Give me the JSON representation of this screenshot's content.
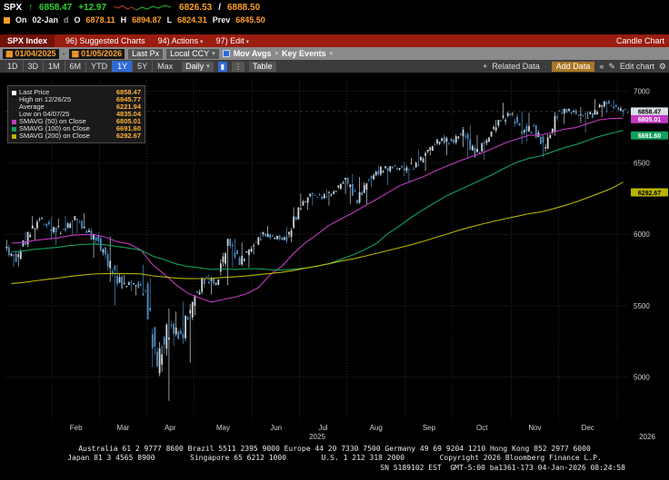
{
  "quote_row": {
    "ticker": "SPX",
    "arrow": "↑",
    "last": "6858.47",
    "change": "+12.97",
    "low": "6826.53",
    "sep": "/",
    "high": "6888.50"
  },
  "ohlc_row": {
    "on_label": "On",
    "date": "02-Jan",
    "d": "d",
    "o_label": "O",
    "open": "6878.11",
    "h_label": "H",
    "high": "6894.87",
    "l_label": "L",
    "low": "6824.31",
    "prev_label": "Prev",
    "prev": "6845.50"
  },
  "menubar": {
    "security": "SPX Index",
    "items": [
      "96) Suggested Charts",
      "94) Actions",
      "97) Edit"
    ],
    "right_label": "Candle Chart"
  },
  "toolbar": {
    "date_from": "01/04/2025",
    "date_separator": "-",
    "date_to": "01/05/2026",
    "price_type": "Last Px",
    "currency": "Local CCY",
    "mov_avgs_label": "Mov Avgs",
    "key_events_label": "Key Events"
  },
  "periods_bar": {
    "periods": [
      "1D",
      "3D",
      "1M",
      "6M",
      "YTD",
      "1Y",
      "5Y",
      "Max"
    ],
    "active": "1Y",
    "frequency": "Daily",
    "table_label": "Table",
    "related_label": "Related Data",
    "add_data_label": "Add Data",
    "edit_chart_label": "Edit chart"
  },
  "icons": {
    "caret": "▾",
    "calendar": "▦",
    "candle_chart": "▮",
    "dots": "⋮",
    "plus": "+",
    "pencil": "✎",
    "gear": "⚙",
    "chevrons": "«",
    "separator": "·"
  },
  "legend": {
    "rows": [
      {
        "marker": "#ffffff",
        "label": "Last Price",
        "value": "6858.47"
      },
      {
        "marker": "",
        "label": "High on 12/26/25",
        "value": "6945.77"
      },
      {
        "marker": "",
        "label": "Average",
        "value": "6221.94"
      },
      {
        "marker": "",
        "label": "Low on 04/07/25",
        "value": "4835.04"
      },
      {
        "marker": "#c13ac1",
        "label": "SMAVG (50) on Close",
        "value": "6805.01"
      },
      {
        "marker": "#11a05c",
        "label": "SMAVG (100) on Close",
        "value": "6691.60"
      },
      {
        "marker": "#b9b400",
        "label": "SMAVG (200) on Close",
        "value": "6292.67"
      }
    ]
  },
  "chart_data": {
    "type": "candlestick",
    "title": "Candle Chart",
    "period": "1Y Daily",
    "y_ticks": [
      7000,
      6500,
      6000,
      5500,
      5000
    ],
    "y_range": [
      4700,
      7080
    ],
    "last_price": 6858.47,
    "year_center": "2025",
    "year_right": "2026",
    "month_ticks": [
      {
        "label": "Feb",
        "i": 4
      },
      {
        "label": "Mar",
        "i": 8
      },
      {
        "label": "Apr",
        "i": 12
      },
      {
        "label": "May",
        "i": 16
      },
      {
        "label": "Jun",
        "i": 21
      },
      {
        "label": "Jul",
        "i": 25
      },
      {
        "label": "Aug",
        "i": 29
      },
      {
        "label": "Sep",
        "i": 34
      },
      {
        "label": "Oct",
        "i": 38
      },
      {
        "label": "Nov",
        "i": 43
      },
      {
        "label": "Dec",
        "i": 47
      },
      {
        "label": "",
        "i": 52
      }
    ],
    "weekly_ohlc": [
      [
        5903,
        5960,
        5773,
        5827
      ],
      [
        5827,
        6017,
        5775,
        5997
      ],
      [
        5997,
        6128,
        5962,
        6101
      ],
      [
        6101,
        6120,
        5962,
        6041
      ],
      [
        6041,
        6110,
        5923,
        6026
      ],
      [
        6026,
        6127,
        5992,
        6115
      ],
      [
        6115,
        6147,
        6008,
        6013
      ],
      [
        6013,
        6043,
        5837,
        5955
      ],
      [
        5955,
        5986,
        5666,
        5770
      ],
      [
        5770,
        5783,
        5504,
        5639
      ],
      [
        5639,
        5715,
        5603,
        5668
      ],
      [
        5668,
        5787,
        5572,
        5581
      ],
      [
        5581,
        5695,
        5069,
        5074
      ],
      [
        5074,
        5481,
        4835,
        5363
      ],
      [
        5363,
        5459,
        5220,
        5283
      ],
      [
        5283,
        5528,
        5101,
        5525
      ],
      [
        5525,
        5700,
        5433,
        5687
      ],
      [
        5687,
        5720,
        5578,
        5660
      ],
      [
        5660,
        5968,
        5644,
        5958
      ],
      [
        5958,
        5968,
        5767,
        5803
      ],
      [
        5803,
        5943,
        5767,
        5912
      ],
      [
        5912,
        6016,
        5861,
        6000
      ],
      [
        6000,
        6059,
        5963,
        5977
      ],
      [
        5977,
        6050,
        5936,
        5968
      ],
      [
        5968,
        6188,
        5943,
        6173
      ],
      [
        6173,
        6284,
        6171,
        6279
      ],
      [
        6279,
        6290,
        6201,
        6260
      ],
      [
        6260,
        6315,
        6201,
        6297
      ],
      [
        6297,
        6395,
        6281,
        6389
      ],
      [
        6389,
        6420,
        6212,
        6238
      ],
      [
        6238,
        6400,
        6212,
        6389
      ],
      [
        6389,
        6481,
        6331,
        6450
      ],
      [
        6450,
        6478,
        6343,
        6467
      ],
      [
        6467,
        6508,
        6406,
        6460
      ],
      [
        6460,
        6533,
        6361,
        6481
      ],
      [
        6481,
        6592,
        6442,
        6584
      ],
      [
        6584,
        6669,
        6551,
        6664
      ],
      [
        6664,
        6700,
        6553,
        6644
      ],
      [
        6644,
        6750,
        6610,
        6716
      ],
      [
        6716,
        6765,
        6537,
        6553
      ],
      [
        6553,
        6694,
        6520,
        6664
      ],
      [
        6664,
        6800,
        6640,
        6792
      ],
      [
        6792,
        6920,
        6766,
        6840
      ],
      [
        6840,
        6860,
        6631,
        6729
      ],
      [
        6729,
        6850,
        6648,
        6734
      ],
      [
        6734,
        6768,
        6538,
        6603
      ],
      [
        6603,
        6855,
        6597,
        6849
      ],
      [
        6849,
        6880,
        6770,
        6870
      ],
      [
        6870,
        6890,
        6778,
        6828
      ],
      [
        6828,
        6860,
        6710,
        6835
      ],
      [
        6835,
        6946,
        6820,
        6930
      ],
      [
        6930,
        6940,
        6850,
        6880
      ],
      [
        6878,
        6895,
        6824,
        6858
      ]
    ],
    "moving_averages": [
      {
        "name": "SMAVG (50) on Close",
        "window_weeks": 10,
        "color": "#c13ac1",
        "start": 5950,
        "last": "6805.01"
      },
      {
        "name": "SMAVG (100) on Close",
        "window_weeks": 20,
        "color": "#11a05c",
        "start": 5880,
        "last": "6691.60"
      },
      {
        "name": "SMAVG (200) on Close",
        "window_weeks": 40,
        "color": "#b9b400",
        "start": 5650,
        "last": "6292.67"
      }
    ],
    "axis_badges": [
      {
        "v": 6858.47,
        "text": "6858.47",
        "bg": "#d9dee2",
        "fg": "#000000"
      },
      {
        "v": 6805.01,
        "text": "6805.01",
        "bg": "#c13ac1",
        "fg": "#ffffff"
      },
      {
        "v": 6691.6,
        "text": "6691.60",
        "bg": "#11a05c",
        "fg": "#ffffff"
      },
      {
        "v": 6292.67,
        "text": "6292.67",
        "bg": "#b9b400",
        "fg": "#000000"
      }
    ],
    "colors": {
      "up": "#ccd6dc",
      "down": "#4e8dc2",
      "grid": "#3f3f3f",
      "axis_text": "#cfcfcf"
    }
  },
  "footer": {
    "line1": "Australia 61 2 9777 8600 Brazil 5511 2395 9000 Europe 44 20 7330 7500 Germany 49 69 9204 1210 Hong Kong 852 2977 6000",
    "line2": "Japan 81 3 4565 8900        Singapore 65 6212 1000        U.S. 1 212 318 2000        Copyright 2026 Bloomberg Finance L.P.",
    "status": "SN 5189102 EST  GMT-5:00 ba1361-173 04-Jan-2026 08:24:58"
  }
}
